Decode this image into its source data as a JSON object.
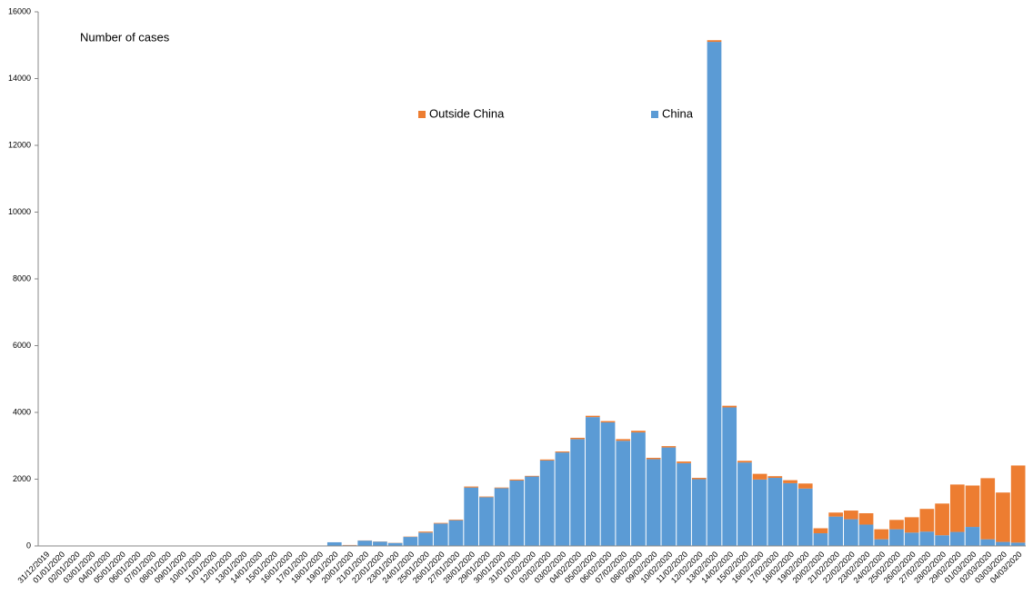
{
  "chart_data": {
    "type": "stacked_bar",
    "title": "Number of cases",
    "categories": [
      "31/12/2019",
      "01/01/2020",
      "02/01/2020",
      "03/01/2020",
      "04/01/2020",
      "05/01/2020",
      "06/01/2020",
      "07/01/2020",
      "08/01/2020",
      "09/01/2020",
      "10/01/2020",
      "11/01/2020",
      "12/01/2020",
      "13/01/2020",
      "14/01/2020",
      "15/01/2020",
      "16/01/2020",
      "17/01/2020",
      "18/01/2020",
      "19/01/2020",
      "20/01/2020",
      "21/01/2020",
      "22/01/2020",
      "23/01/2020",
      "24/01/2020",
      "25/01/2020",
      "26/01/2020",
      "27/01/2020",
      "28/01/2020",
      "29/01/2020",
      "30/01/2020",
      "31/01/2020",
      "01/02/2020",
      "02/02/2020",
      "03/02/2020",
      "04/02/2020",
      "05/02/2020",
      "06/02/2020",
      "07/02/2020",
      "08/02/2020",
      "09/02/2020",
      "10/02/2020",
      "11/02/2020",
      "12/02/2020",
      "13/02/2020",
      "14/02/2020",
      "15/02/2020",
      "16/02/2020",
      "17/02/2020",
      "18/02/2020",
      "19/02/2020",
      "20/02/2020",
      "21/02/2020",
      "22/02/2020",
      "23/02/2020",
      "24/02/2020",
      "25/02/2020",
      "26/02/2020",
      "27/02/2020",
      "28/02/2020",
      "29/02/2020",
      "01/03/2020",
      "02/03/2020",
      "03/03/2020",
      "04/03/2020"
    ],
    "series": [
      {
        "name": "China",
        "color": "#5b9bd5",
        "values": [
          0,
          0,
          0,
          0,
          0,
          0,
          0,
          0,
          0,
          0,
          0,
          0,
          0,
          0,
          0,
          0,
          0,
          0,
          0,
          110,
          20,
          160,
          130,
          90,
          270,
          400,
          670,
          770,
          1750,
          1460,
          1730,
          1960,
          2080,
          2560,
          2800,
          3200,
          3860,
          3700,
          3150,
          3400,
          2600,
          2950,
          2480,
          2000,
          15100,
          4150,
          2500,
          1990,
          2040,
          1880,
          1720,
          380,
          880,
          800,
          640,
          200,
          500,
          400,
          430,
          320,
          420,
          570,
          200,
          120,
          100
        ]
      },
      {
        "name": "Outside China",
        "color": "#ed7d31",
        "values": [
          0,
          0,
          0,
          0,
          0,
          0,
          0,
          0,
          0,
          0,
          0,
          0,
          0,
          0,
          0,
          0,
          0,
          0,
          0,
          0,
          10,
          5,
          5,
          5,
          10,
          30,
          20,
          20,
          30,
          20,
          20,
          30,
          20,
          30,
          30,
          40,
          40,
          40,
          50,
          50,
          40,
          40,
          50,
          40,
          50,
          50,
          50,
          170,
          50,
          90,
          150,
          150,
          120,
          260,
          340,
          300,
          280,
          460,
          680,
          950,
          1420,
          1240,
          1830,
          1480,
          2310
        ]
      }
    ],
    "ylim": [
      0,
      16000
    ],
    "yticks": [
      0,
      2000,
      4000,
      6000,
      8000,
      10000,
      12000,
      14000,
      16000
    ]
  }
}
